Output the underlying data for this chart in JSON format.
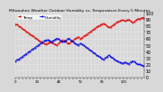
{
  "title": "Milwaukee Weather Outdoor Humidity vs. Temperature Every 5 Minutes",
  "bg_color": "#d8d8d8",
  "plot_bg": "#d8d8d8",
  "grid_color": "#ffffff",
  "temp_color": "#dd0000",
  "humidity_color": "#0000dd",
  "marker": ".",
  "markersize": 1.0,
  "linewidth": 0.6,
  "ylim": [
    0,
    100
  ],
  "n_points": 144,
  "temp_values": [
    82,
    82,
    81,
    80,
    79,
    78,
    77,
    76,
    75,
    74,
    73,
    72,
    71,
    70,
    69,
    68,
    67,
    66,
    65,
    64,
    63,
    62,
    61,
    60,
    59,
    58,
    57,
    56,
    55,
    55,
    54,
    53,
    52,
    52,
    51,
    51,
    52,
    53,
    54,
    55,
    55,
    54,
    53,
    52,
    51,
    50,
    50,
    51,
    52,
    53,
    55,
    56,
    57,
    58,
    57,
    56,
    55,
    54,
    53,
    52,
    53,
    54,
    55,
    56,
    57,
    58,
    59,
    60,
    61,
    62,
    62,
    61,
    60,
    60,
    61,
    62,
    63,
    64,
    65,
    66,
    67,
    68,
    69,
    70,
    71,
    72,
    73,
    74,
    75,
    76,
    77,
    78,
    79,
    80,
    80,
    81,
    82,
    83,
    83,
    82,
    81,
    80,
    79,
    78,
    77,
    77,
    78,
    79,
    80,
    81,
    82,
    83,
    84,
    85,
    86,
    86,
    87,
    87,
    88,
    88,
    88,
    87,
    87,
    87,
    88,
    89,
    89,
    88,
    87,
    86,
    85,
    85,
    86,
    87,
    88,
    89,
    90,
    90,
    90,
    91,
    91,
    92,
    92,
    91
  ],
  "humidity_values": [
    25,
    26,
    27,
    27,
    28,
    29,
    30,
    31,
    32,
    33,
    34,
    35,
    36,
    37,
    38,
    39,
    40,
    41,
    42,
    43,
    44,
    45,
    46,
    47,
    48,
    49,
    50,
    51,
    52,
    53,
    54,
    55,
    56,
    57,
    57,
    58,
    58,
    57,
    56,
    55,
    54,
    55,
    56,
    57,
    58,
    59,
    60,
    60,
    59,
    58,
    57,
    56,
    55,
    54,
    55,
    56,
    57,
    58,
    59,
    60,
    59,
    58,
    57,
    56,
    55,
    54,
    53,
    52,
    51,
    50,
    50,
    51,
    52,
    52,
    51,
    50,
    49,
    48,
    47,
    46,
    45,
    44,
    43,
    42,
    41,
    40,
    39,
    38,
    37,
    36,
    35,
    34,
    33,
    32,
    31,
    30,
    29,
    28,
    28,
    29,
    30,
    31,
    32,
    33,
    34,
    33,
    32,
    31,
    30,
    29,
    28,
    27,
    26,
    25,
    24,
    24,
    23,
    23,
    22,
    22,
    22,
    23,
    23,
    23,
    22,
    21,
    21,
    22,
    23,
    24,
    25,
    25,
    24,
    23,
    22,
    21,
    20,
    20,
    20,
    19,
    19,
    18,
    18,
    19
  ],
  "right_yticks": [
    0,
    10,
    20,
    30,
    40,
    50,
    60,
    70,
    80,
    90,
    100
  ],
  "right_yticklabels": [
    "0",
    "10",
    "20",
    "30",
    "40",
    "50",
    "60",
    "70",
    "80",
    "90",
    "100"
  ],
  "ylabel_right_fontsize": 3.5,
  "title_fontsize": 3.2,
  "tick_labelsize": 2.8,
  "legend_fontsize": 3.0
}
